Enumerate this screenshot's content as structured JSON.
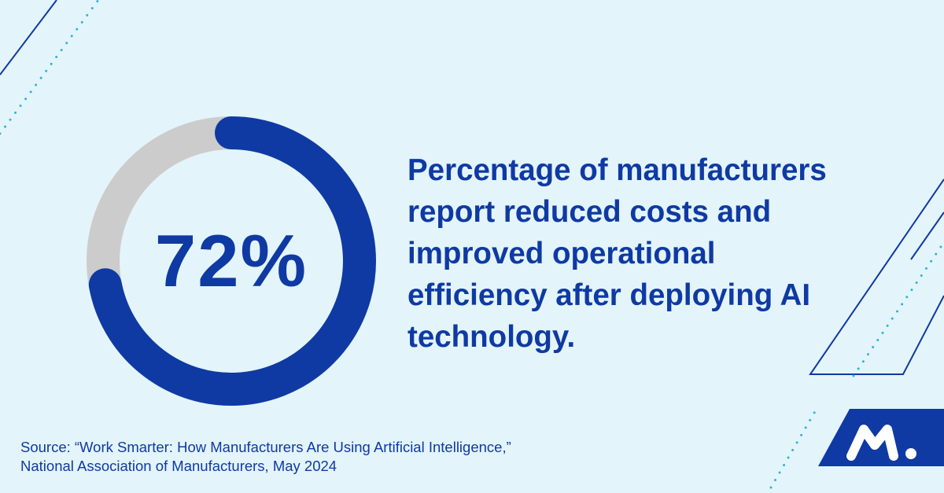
{
  "colors": {
    "primary": "#0f3aa3",
    "track": "#cccccc",
    "background": "#e3f4fb",
    "dots": "#2fb3d3",
    "logo": "#0f3aa3"
  },
  "chart_data": {
    "type": "pie",
    "style": "donut",
    "categories": [
      "reduced costs and improved operational efficiency",
      "other"
    ],
    "values": [
      72,
      28
    ],
    "value_label": "72%",
    "unit": "%",
    "colors": [
      "#0f3aa3",
      "#cccccc"
    ],
    "title": "Percentage of manufacturers report reduced costs and improved operational efficiency after deploying AI technology."
  },
  "headline": {
    "lines": [
      "Percentage of manufacturers",
      "report reduced costs and",
      "improved operational",
      "efficiency after deploying AI",
      "technology."
    ]
  },
  "source": {
    "line1": "Source: “Work Smarter: How Manufacturers Are Using Artificial Intelligence,”",
    "line2": "National Association of Manufacturers, May 2024"
  },
  "logo": {
    "icon": "nam-m-logo-icon"
  }
}
